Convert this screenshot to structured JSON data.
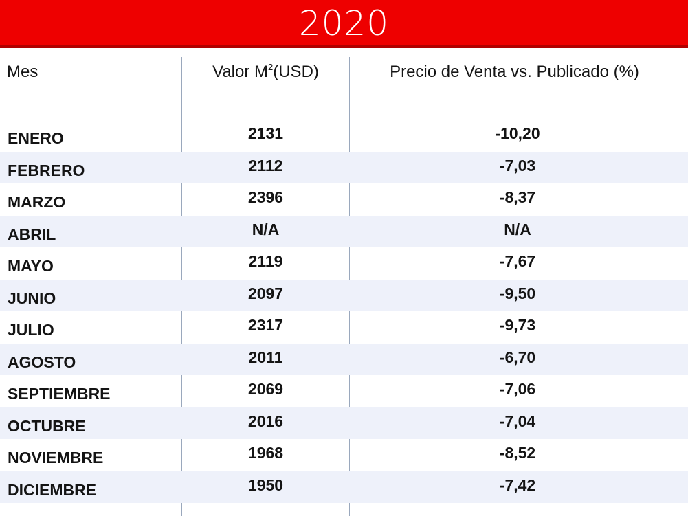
{
  "title": "2020",
  "colors": {
    "title_bar": "#ee0000",
    "title_bar_border": "#b10000",
    "row_shade": "#eef1fa",
    "divider": "#9aa8bd"
  },
  "headers": {
    "mes": "Mes",
    "valor_prefix": "Valor M",
    "valor_sup": "2",
    "valor_suffix": "(USD)",
    "precio": "Precio de Venta vs. Publicado (%)"
  },
  "rows": [
    {
      "mes": "ENERO",
      "valor": "2131",
      "precio": "-10,20"
    },
    {
      "mes": "FEBRERO",
      "valor": "2112",
      "precio": "-7,03"
    },
    {
      "mes": "MARZO",
      "valor": "2396",
      "precio": "-8,37"
    },
    {
      "mes": "ABRIL",
      "valor": "N/A",
      "precio": "N/A"
    },
    {
      "mes": "MAYO",
      "valor": "2119",
      "precio": "-7,67"
    },
    {
      "mes": "JUNIO",
      "valor": "2097",
      "precio": "-9,50"
    },
    {
      "mes": "JULIO",
      "valor": "2317",
      "precio": "-9,73"
    },
    {
      "mes": "AGOSTO",
      "valor": "2011",
      "precio": "-6,70"
    },
    {
      "mes": "SEPTIEMBRE",
      "valor": "2069",
      "precio": "-7,06"
    },
    {
      "mes": "OCTUBRE",
      "valor": "2016",
      "precio": "-7,04"
    },
    {
      "mes": "NOVIEMBRE",
      "valor": "1968",
      "precio": "-8,52"
    },
    {
      "mes": "DICIEMBRE",
      "valor": "1950",
      "precio": "-7,42"
    }
  ]
}
